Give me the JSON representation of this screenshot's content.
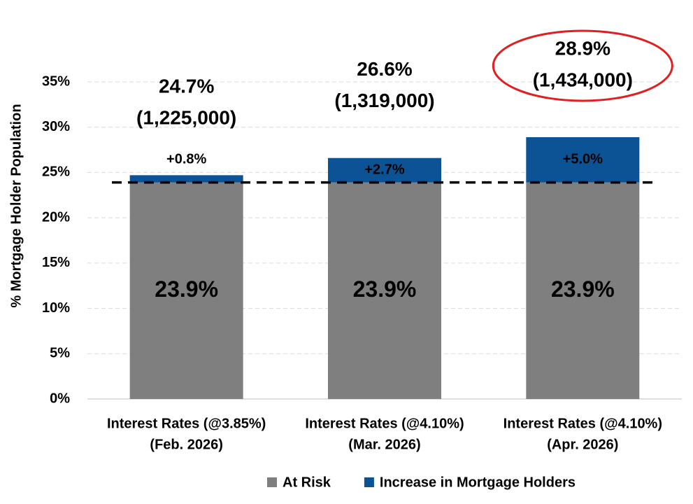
{
  "chart_data": {
    "type": "stacked_bar",
    "y_label": "% Mortgage Holder Population",
    "categories": [
      [
        "Interest Rates (@3.85%)",
        "(Feb. 2026)"
      ],
      [
        "Interest Rates (@4.10%)",
        "(Mar. 2026)"
      ],
      [
        "Interest Rates (@4.10%)",
        "(Apr. 2026)"
      ]
    ],
    "series": [
      {
        "name": "At Risk",
        "color": "#7f7f7f",
        "label_color": "#ffffff",
        "values": [
          23.9,
          23.9,
          23.9
        ],
        "value_labels": [
          "23.9%",
          "23.9%",
          "23.9%"
        ]
      },
      {
        "name": "Increase in Mortgage Holders",
        "color": "#0b5394",
        "label_color": "#ffffff",
        "values": [
          0.8,
          2.7,
          5.0
        ],
        "value_labels": [
          "+0.8%",
          "+2.7%",
          "+5.0%"
        ]
      }
    ],
    "totals": {
      "values": [
        24.7,
        26.6,
        28.9
      ],
      "value_labels": [
        "24.7%",
        "26.6%",
        "28.9%"
      ],
      "count_labels": [
        "(1,225,000)",
        "(1,319,000)",
        "(1,434,000)"
      ]
    },
    "reference_line": 23.9,
    "highlight_index": 2,
    "highlight_color": "#e02020",
    "ylim": [
      0,
      35
    ],
    "yticks": [
      {
        "value": 0,
        "label": "0%"
      },
      {
        "value": 5,
        "label": "5%"
      },
      {
        "value": 10,
        "label": "10%"
      },
      {
        "value": 15,
        "label": "15%"
      },
      {
        "value": 20,
        "label": "20%"
      },
      {
        "value": 25,
        "label": "25%"
      },
      {
        "value": 30,
        "label": "30%"
      },
      {
        "value": 35,
        "label": "35%"
      }
    ],
    "grid": true
  }
}
